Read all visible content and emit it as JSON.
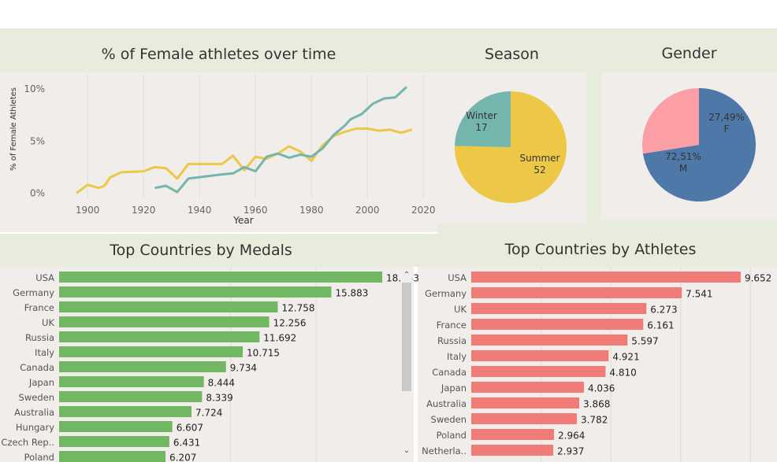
{
  "colors": {
    "band": "#e8ecdc",
    "panel": "#f0edea",
    "teal": "#74b6ae",
    "yellow": "#ecc846",
    "pie_m": "#4e78a8",
    "pie_f": "#fc9ea6",
    "green": "#72b862",
    "coral": "#f07b77"
  },
  "titles": {
    "female": "% of Female athletes over time",
    "season": "Season",
    "gender": "Gender",
    "medals": "Top Countries by Medals",
    "athletes": "Top Countries by Athletes"
  },
  "chart_data": [
    {
      "type": "line",
      "title": "% of Female athletes over time",
      "xlabel": "Year",
      "ylabel": "% of Female Athletes",
      "xlim": [
        1887,
        2025
      ],
      "ylim": [
        -0.5,
        11.6
      ],
      "xticks": [
        1900,
        1920,
        1940,
        1960,
        1980,
        2000,
        2020
      ],
      "xtick_labels": [
        "1900",
        "1920",
        "1940",
        "1960",
        "1980",
        "2000",
        "2020"
      ],
      "yticks": [
        0,
        5,
        10
      ],
      "ytick_labels": [
        "0%",
        "5%",
        "10%"
      ],
      "series": [
        {
          "color": "#ecc846",
          "x": [
            1896,
            1900,
            1904,
            1906,
            1908,
            1912,
            1920,
            1924,
            1928,
            1932,
            1936,
            1948,
            1952,
            1956,
            1960,
            1964,
            1968,
            1972,
            1976,
            1980,
            1984,
            1988,
            1992,
            1996,
            2000,
            2004,
            2008,
            2012,
            2016
          ],
          "y": [
            0,
            0.8,
            0.5,
            0.7,
            1.5,
            2.0,
            2.1,
            2.5,
            2.4,
            1.4,
            2.8,
            2.8,
            3.6,
            2.2,
            3.5,
            3.3,
            3.8,
            4.5,
            4.0,
            3.1,
            4.6,
            5.5,
            5.9,
            6.2,
            6.2,
            6.0,
            6.1,
            5.8,
            6.1
          ]
        },
        {
          "color": "#74b6ae",
          "x": [
            1924,
            1928,
            1932,
            1936,
            1948,
            1952,
            1956,
            1960,
            1964,
            1968,
            1972,
            1976,
            1980,
            1984,
            1988,
            1992,
            1994,
            1998,
            2002,
            2006,
            2010,
            2014
          ],
          "y": [
            0.5,
            0.7,
            0.1,
            1.4,
            1.8,
            1.9,
            2.5,
            2.1,
            3.5,
            3.8,
            3.4,
            3.7,
            3.5,
            4.3,
            5.6,
            6.5,
            7.1,
            7.6,
            8.6,
            9.1,
            9.2,
            10.2
          ]
        }
      ]
    },
    {
      "type": "pie",
      "title": "Season",
      "slices": [
        {
          "label": "Summer",
          "value": 52,
          "color": "#ecc846"
        },
        {
          "label": "Winter",
          "value": 17,
          "color": "#74b6ae"
        }
      ]
    },
    {
      "type": "pie",
      "title": "Gender",
      "slices": [
        {
          "label": "M",
          "value": 72.51,
          "value_label": "72,51%",
          "color": "#4e78a8"
        },
        {
          "label": "F",
          "value": 27.49,
          "value_label": "27,49%",
          "color": "#fc9ea6"
        }
      ]
    },
    {
      "type": "bar",
      "orientation": "horizontal",
      "title": "Top Countries by Medals",
      "color": "#72b862",
      "xlim": [
        0,
        20000
      ],
      "categories": [
        "USA",
        "Germany",
        "France",
        "UK",
        "Russia",
        "Italy",
        "Canada",
        "Japan",
        "Sweden",
        "Australia",
        "Hungary",
        "Czech Rep..",
        "Poland"
      ],
      "values": [
        18853,
        15883,
        12758,
        12256,
        11692,
        10715,
        9734,
        8444,
        8339,
        7724,
        6607,
        6431,
        6207
      ],
      "value_labels": [
        "18.853",
        "15.883",
        "12.758",
        "12.256",
        "11.692",
        "10.715",
        "9.734",
        "8.444",
        "8.339",
        "7.724",
        "6.607",
        "6.431",
        "6.207"
      ]
    },
    {
      "type": "bar",
      "orientation": "horizontal",
      "title": "Top Countries by Athletes",
      "color": "#f07b77",
      "xlim": [
        0,
        10500
      ],
      "categories": [
        "USA",
        "Germany",
        "UK",
        "France",
        "Russia",
        "Italy",
        "Canada",
        "Japan",
        "Australia",
        "Sweden",
        "Poland",
        "Netherla.."
      ],
      "values": [
        9652,
        7541,
        6273,
        6161,
        5597,
        4921,
        4810,
        4036,
        3868,
        3782,
        2964,
        2937
      ],
      "value_labels": [
        "9.652",
        "7.541",
        "6.273",
        "6.161",
        "5.597",
        "4.921",
        "4.810",
        "4.036",
        "3.868",
        "3.782",
        "2.964",
        "2.937"
      ]
    }
  ]
}
